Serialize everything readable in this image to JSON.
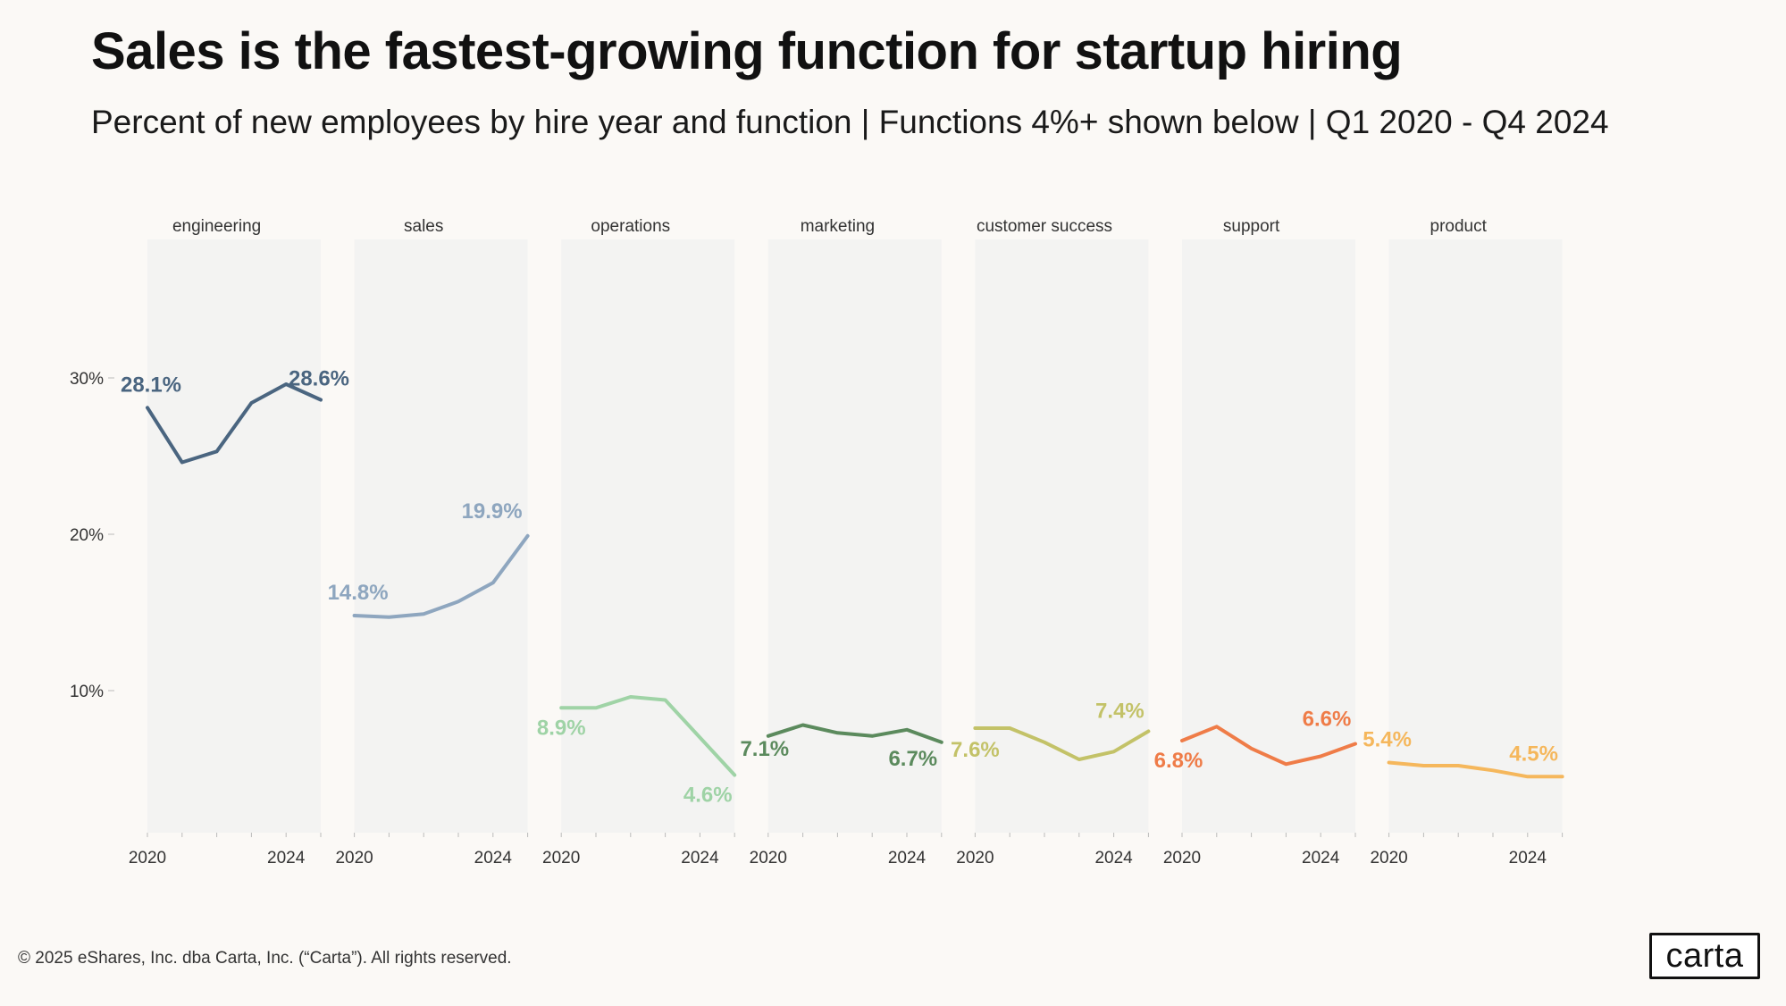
{
  "header": {
    "title": "Sales is the fastest-growing function for startup hiring",
    "subtitle": "Percent of new employees by hire year and function | Functions 4%+ shown below | Q1 2020 - Q4 2024"
  },
  "footer": {
    "copyright": "© 2025 eShares, Inc. dba Carta, Inc. (“Carta”). All rights reserved.",
    "logo_text": "carta"
  },
  "chart_data": {
    "type": "line",
    "layout": "small-multiples",
    "x": [
      2020,
      2021,
      2022,
      2023,
      2024,
      2025
    ],
    "x_tick_labels": [
      "2020",
      "2024"
    ],
    "y_ticks": [
      10,
      20,
      30
    ],
    "y_tick_labels": [
      "10%",
      "20%",
      "30%"
    ],
    "ylim": [
      1,
      39
    ],
    "grid": false,
    "series": [
      {
        "name": "engineering",
        "color": "#4a6580",
        "values": [
          28.1,
          24.6,
          25.3,
          28.4,
          29.6,
          28.6
        ],
        "first_label": "28.1%",
        "last_label": "28.6%"
      },
      {
        "name": "sales",
        "color": "#8ea6bf",
        "values": [
          14.8,
          14.7,
          14.9,
          15.7,
          16.9,
          19.9
        ],
        "first_label": "14.8%",
        "last_label": "19.9%"
      },
      {
        "name": "operations",
        "color": "#9fd3a6",
        "values": [
          8.9,
          8.9,
          9.6,
          9.4,
          7.0,
          4.6
        ],
        "first_label": "8.9%",
        "last_label": "4.6%"
      },
      {
        "name": "marketing",
        "color": "#5b8a5d",
        "values": [
          7.1,
          7.8,
          7.3,
          7.1,
          7.5,
          6.7
        ],
        "first_label": "7.1%",
        "last_label": "6.7%"
      },
      {
        "name": "customer success",
        "color": "#c3c268",
        "values": [
          7.6,
          7.6,
          6.7,
          5.6,
          6.1,
          7.4
        ],
        "first_label": "7.6%",
        "last_label": "7.4%"
      },
      {
        "name": "support",
        "color": "#ef7c48",
        "values": [
          6.8,
          7.7,
          6.3,
          5.3,
          5.8,
          6.6
        ],
        "first_label": "6.8%",
        "last_label": "6.6%"
      },
      {
        "name": "product",
        "color": "#f5b75c",
        "values": [
          5.4,
          5.2,
          5.2,
          4.9,
          4.5,
          4.5
        ],
        "first_label": "5.4%",
        "last_label": "4.5%"
      }
    ]
  }
}
